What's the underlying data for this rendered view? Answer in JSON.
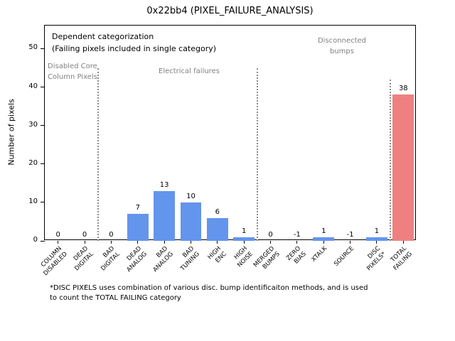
{
  "figure": {
    "title": "0x22bb4 (PIXEL_FAILURE_ANALYSIS)",
    "ylabel": "Number of pixels",
    "footnote": "*DISC PIXELS uses combination of various disc. bump identificaiton methods, and is used\nto count the TOTAL FAILING category"
  },
  "chart_data": {
    "type": "bar",
    "title": "0x22bb4 (PIXEL_FAILURE_ANALYSIS)",
    "xlabel": "",
    "ylabel": "Number of pixels",
    "ylim": [
      0,
      56
    ],
    "yticks": [
      0,
      10,
      20,
      30,
      40,
      50
    ],
    "grid": false,
    "legend": "none",
    "categories": [
      "COLUMN\nDISABLED",
      "DEAD\nDIGITAL",
      "BAD\nDIGITAL",
      "DEAD\nANALOG",
      "BAD\nANALOG",
      "BAD\nTUNING",
      "HIGH\nENC",
      "HIGH\nNOISE",
      "MERGED\nBUMPS",
      "ZERO\nBIAS",
      "XTALK",
      "SOURCE",
      "DISC\nPIXELS*",
      "TOTAL\nFAILING"
    ],
    "values": [
      0,
      0,
      0,
      7,
      13,
      10,
      6,
      1,
      0,
      -1,
      1,
      -1,
      1,
      38
    ],
    "colors": {
      "bar_default": "#6495ed",
      "bar_total_failing": "#f08080",
      "separator": "#8c8c8c",
      "annotation_gray": "#808080"
    },
    "separators": [
      {
        "boundary": 2,
        "top_value": 45
      },
      {
        "boundary": 8,
        "top_value": 45
      },
      {
        "boundary": 13,
        "top_value": 42
      }
    ],
    "annotations": [
      {
        "name": "annotation-dependent-categorization",
        "text": "Dependent categorization\n(Failing pixels included in single category)",
        "color": "#000000",
        "x": 10,
        "y": 8,
        "size": 11
      },
      {
        "name": "annotation-disabled-core-column-pixels",
        "text": "Disabled Core\nColumn Pixels",
        "color": "#808080",
        "x": 4,
        "y": 50,
        "size": 10
      },
      {
        "name": "annotation-electrical-failures",
        "text": "Electrical failures",
        "color": "#808080",
        "x": 160,
        "y": 57,
        "size": 10
      },
      {
        "name": "annotation-disconnected-bumps",
        "text": "Disconnected\nbumps",
        "color": "#808080",
        "x": 368,
        "y": 14,
        "size": 10,
        "align": "center",
        "width": 100
      }
    ]
  }
}
